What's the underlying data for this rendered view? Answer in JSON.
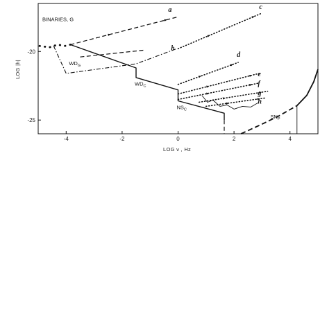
{
  "chart_data": {
    "type": "line",
    "xlabel": "LOG ν , Hz",
    "ylabel": "LOG |h|",
    "xlim": [
      -5,
      5
    ],
    "ylim": [
      -26,
      -16.5
    ],
    "xticks": [
      -4,
      -2,
      0,
      2,
      4
    ],
    "yticks": [
      -20,
      -25
    ],
    "grid": false,
    "annotations": [
      {
        "id": "binaries",
        "text": "BINARIES, G",
        "x": -4.85,
        "y": -17.8
      },
      {
        "id": "wdg",
        "text": "WD",
        "sub": "G",
        "x": -3.9,
        "y": -21.0
      },
      {
        "id": "wdc",
        "text": "WD",
        "sub": "C",
        "x": -1.55,
        "y": -22.5
      },
      {
        "id": "nsc",
        "text": "NS",
        "sub": "C",
        "x": -0.05,
        "y": -24.2
      },
      {
        "id": "snp",
        "text": "SN",
        "sub": "P",
        "x": 3.3,
        "y": -24.9
      }
    ],
    "curve_labels": [
      {
        "text": "a",
        "x": -0.35,
        "y": -17.1
      },
      {
        "text": "b",
        "x": -0.25,
        "y": -19.9
      },
      {
        "text": "c",
        "x": 2.9,
        "y": -16.9
      },
      {
        "text": "d",
        "x": 2.1,
        "y": -20.4
      },
      {
        "text": "e",
        "x": 2.85,
        "y": -21.8
      },
      {
        "text": "f",
        "x": 2.85,
        "y": -22.5
      },
      {
        "text": "g",
        "x": 2.85,
        "y": -23.2
      },
      {
        "text": "h",
        "x": 2.85,
        "y": -23.8
      }
    ],
    "series": [
      {
        "key": "binaries-dots",
        "style": "dotted-bold",
        "x": [
          -4.95,
          -4.6,
          -4.3,
          -4.05,
          -3.85
        ],
        "y": [
          -19.6,
          -19.7,
          -19.5,
          -19.6,
          -19.5
        ]
      },
      {
        "key": "wd-nsc-envelope",
        "style": "solid",
        "x": [
          -3.85,
          -1.5,
          -1.5,
          0,
          0,
          1.65,
          1.65
        ],
        "y": [
          -19.5,
          -21.2,
          -21.9,
          -22.8,
          -23.6,
          -24.5,
          -25.0
        ]
      },
      {
        "key": "dashed-drop",
        "style": "dashed",
        "x": [
          1.65,
          1.65
        ],
        "y": [
          -25.0,
          -26.0
        ]
      },
      {
        "key": "a",
        "style": "dashed",
        "x": [
          -3.85,
          -0.05
        ],
        "y": [
          -19.5,
          -17.5
        ]
      },
      {
        "key": "b",
        "style": "dash-dot",
        "x": [
          -4.45,
          -4.0,
          -1.5,
          -0.05
        ],
        "y": [
          -19.6,
          -21.6,
          -20.9,
          -19.8
        ]
      },
      {
        "key": "b-dash",
        "style": "dashed",
        "x": [
          -3.5,
          -1.2
        ],
        "y": [
          -20.4,
          -19.9
        ]
      },
      {
        "key": "c",
        "style": "dotted",
        "x": [
          0.0,
          3.0
        ],
        "y": [
          -19.8,
          -17.2
        ]
      },
      {
        "key": "d",
        "style": "dotted",
        "x": [
          0.0,
          2.15
        ],
        "y": [
          -22.4,
          -20.8
        ]
      },
      {
        "key": "e",
        "style": "dotted",
        "x": [
          0.0,
          2.9
        ],
        "y": [
          -23.1,
          -21.6
        ]
      },
      {
        "key": "f",
        "style": "dotted",
        "x": [
          0.0,
          2.9
        ],
        "y": [
          -23.5,
          -22.3
        ]
      },
      {
        "key": "g",
        "style": "dotted",
        "x": [
          0.75,
          3.2
        ],
        "y": [
          -23.7,
          -22.9
        ]
      },
      {
        "key": "h",
        "style": "dotted",
        "x": [
          1.0,
          3.1
        ],
        "y": [
          -24.0,
          -23.4
        ]
      },
      {
        "key": "ns-squiggle",
        "style": "solid-thin",
        "x": [
          0.85,
          1.05,
          1.25,
          1.5,
          1.75,
          2.0,
          2.3,
          2.6,
          2.85
        ],
        "y": [
          -23.2,
          -23.7,
          -23.55,
          -24.0,
          -23.9,
          -24.2,
          -24.0,
          -24.05,
          -23.75
        ]
      },
      {
        "key": "sn-dashed",
        "style": "dashed-bold",
        "x": [
          2.25,
          3.0,
          3.6,
          4.25
        ],
        "y": [
          -26.0,
          -25.3,
          -24.7,
          -23.95
        ]
      },
      {
        "key": "sn-curve",
        "style": "solid-bold",
        "x": [
          4.25,
          4.6,
          4.85,
          5.0
        ],
        "y": [
          -23.95,
          -23.2,
          -22.2,
          -21.3
        ]
      },
      {
        "key": "sn-vertical",
        "style": "solid-thin",
        "x": [
          4.25,
          4.25
        ],
        "y": [
          -23.95,
          -26.0
        ]
      }
    ]
  }
}
